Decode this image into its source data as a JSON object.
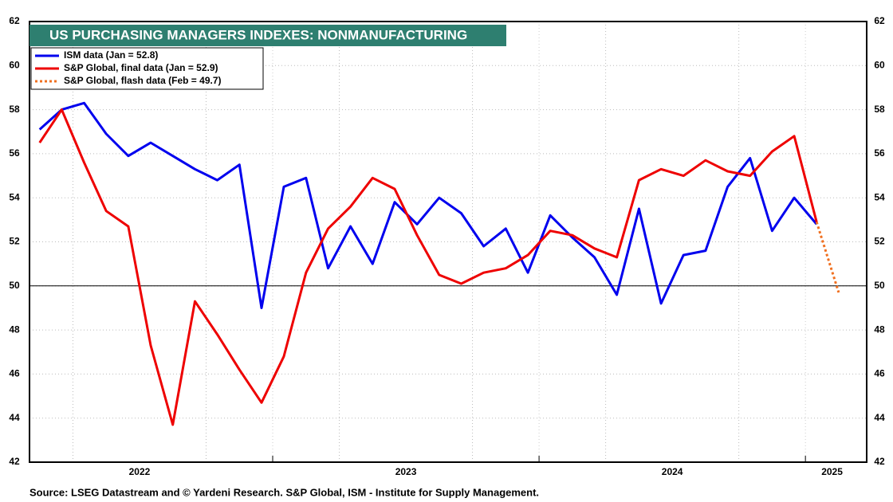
{
  "chart_data": {
    "type": "line",
    "title": "US PURCHASING MANAGERS INDEXES: NONMANUFACTURING",
    "source": "Source: LSEG Datastream and © Yardeni Research. S&P Global, ISM - Institute for Supply Management.",
    "x": [
      2022.125,
      2022.208,
      2022.292,
      2022.375,
      2022.458,
      2022.542,
      2022.625,
      2022.708,
      2022.792,
      2022.875,
      2022.958,
      2023.042,
      2023.125,
      2023.208,
      2023.292,
      2023.375,
      2023.458,
      2023.542,
      2023.625,
      2023.708,
      2023.792,
      2023.875,
      2023.958,
      2024.042,
      2024.125,
      2024.208,
      2024.292,
      2024.375,
      2024.458,
      2024.542,
      2024.625,
      2024.708,
      2024.792,
      2024.875,
      2024.958,
      2025.042,
      2025.125
    ],
    "series": [
      {
        "name": "ISM data (Jan = 52.8)",
        "color": "#0000ee",
        "dash": false,
        "values": [
          57.1,
          58.0,
          58.3,
          56.9,
          55.9,
          56.5,
          55.9,
          55.3,
          54.8,
          55.5,
          49.0,
          54.5,
          54.9,
          50.8,
          52.7,
          51.0,
          53.8,
          52.8,
          54.0,
          53.3,
          51.8,
          52.6,
          50.6,
          53.2,
          52.2,
          51.3,
          49.6,
          53.5,
          49.2,
          51.4,
          51.6,
          54.5,
          55.8,
          52.5,
          54.0,
          52.8,
          null
        ]
      },
      {
        "name": "S&P Global, final data (Jan = 52.9)",
        "color": "#ee0000",
        "dash": false,
        "values": [
          56.5,
          58.0,
          55.6,
          53.4,
          52.7,
          47.3,
          43.7,
          49.3,
          47.8,
          46.2,
          44.7,
          46.8,
          50.6,
          52.6,
          53.6,
          54.9,
          54.4,
          52.3,
          50.5,
          50.1,
          50.6,
          50.8,
          51.4,
          52.5,
          52.3,
          51.7,
          51.3,
          54.8,
          55.3,
          55.0,
          55.7,
          55.2,
          55.0,
          56.1,
          56.8,
          52.9,
          null
        ]
      },
      {
        "name": "S&P Global, flash data (Feb = 49.7)",
        "color": "#f07020",
        "dash": true,
        "values": [
          null,
          null,
          null,
          null,
          null,
          null,
          null,
          null,
          null,
          null,
          null,
          null,
          null,
          null,
          null,
          null,
          null,
          null,
          null,
          null,
          null,
          null,
          null,
          null,
          null,
          null,
          null,
          null,
          null,
          null,
          null,
          null,
          null,
          null,
          null,
          52.9,
          49.7
        ]
      }
    ],
    "xlim": [
      2022.087,
      2025.23
    ],
    "xticks": [
      {
        "value": 2022.5,
        "label": "2022"
      },
      {
        "value": 2023.5,
        "label": "2023"
      },
      {
        "value": 2024.5,
        "label": "2024"
      },
      {
        "value": 2025.1,
        "label": "2025"
      }
    ],
    "x_boundaries": [
      2023,
      2024,
      2025
    ],
    "xgrid": [
      2022.25,
      2022.75,
      2023.25,
      2023.75,
      2024.25,
      2024.75
    ],
    "ylim": [
      42,
      62
    ],
    "yticks": [
      42,
      44,
      46,
      48,
      50,
      52,
      54,
      56,
      58,
      60,
      62
    ],
    "reference_line": 50,
    "grid": true,
    "legend": "upper left"
  }
}
